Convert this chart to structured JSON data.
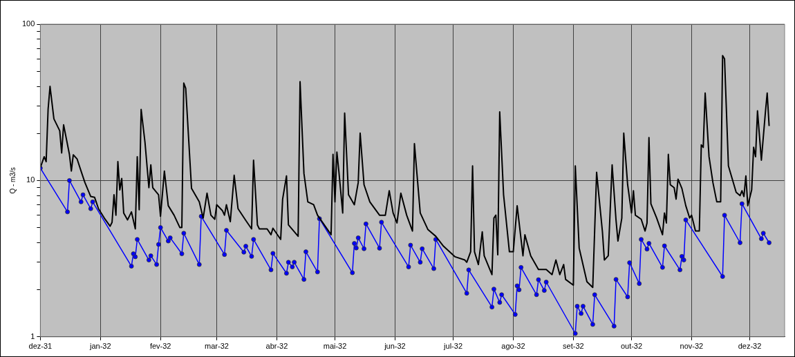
{
  "chart_data": {
    "type": "line",
    "ylabel": "Q - m3/s",
    "log": true,
    "grid": true,
    "xlim": [
      "1931-12-01",
      "1932-12-19"
    ],
    "xticks": [
      {
        "value": "1931-12-01",
        "label": "dez-31"
      },
      {
        "value": "1932-01-01",
        "label": "jan-32"
      },
      {
        "value": "1932-02-01",
        "label": "fev-32"
      },
      {
        "value": "1932-03-01",
        "label": "mar-32"
      },
      {
        "value": "1932-04-01",
        "label": "abr-32"
      },
      {
        "value": "1932-05-01",
        "label": "mai-32"
      },
      {
        "value": "1932-06-01",
        "label": "jun-32"
      },
      {
        "value": "1932-07-01",
        "label": "jul-32"
      },
      {
        "value": "1932-08-01",
        "label": "ago-32"
      },
      {
        "value": "1932-09-01",
        "label": "set-32"
      },
      {
        "value": "1932-10-01",
        "label": "out-32"
      },
      {
        "value": "1932-11-01",
        "label": "nov-32"
      },
      {
        "value": "1932-12-01",
        "label": "dez-32"
      }
    ],
    "ylim": [
      1,
      100
    ],
    "yticks": [
      1,
      {
        "value": 2,
        "label": null
      },
      {
        "value": 3,
        "label": null
      },
      {
        "value": 4,
        "label": null
      },
      {
        "value": 5,
        "label": null
      },
      {
        "value": 6,
        "label": null
      },
      {
        "value": 7,
        "label": null
      },
      {
        "value": 8,
        "label": null
      },
      {
        "value": 9,
        "label": null
      },
      10,
      {
        "value": 20,
        "label": null
      },
      {
        "value": 30,
        "label": null
      },
      {
        "value": 40,
        "label": null
      },
      {
        "value": 50,
        "label": null
      },
      {
        "value": 60,
        "label": null
      },
      {
        "value": 70,
        "label": null
      },
      {
        "value": 80,
        "label": null
      },
      {
        "value": 90,
        "label": null
      },
      100
    ],
    "series": [
      {
        "color": "#000000",
        "marker": "none",
        "x": [
          "1931-12-01",
          "1931-12-03",
          "1931-12-04",
          "1931-12-05",
          "1931-12-06",
          "1931-12-08",
          "1931-12-11",
          "1931-12-12",
          "1931-12-13",
          "1931-12-16",
          "1931-12-17",
          "1931-12-18",
          "1931-12-20",
          "1931-12-22",
          "1931-12-24",
          "1931-12-27",
          "1931-12-29",
          "1931-12-31",
          "1932-01-03",
          "1932-01-06",
          "1932-01-07",
          "1932-01-08",
          "1932-01-09",
          "1932-01-10",
          "1932-01-11",
          "1932-01-12",
          "1932-01-13",
          "1932-01-15",
          "1932-01-17",
          "1932-01-19",
          "1932-01-20",
          "1932-01-21",
          "1932-01-22",
          "1932-01-24",
          "1932-01-26",
          "1932-01-27",
          "1932-01-28",
          "1932-01-31",
          "1932-02-01",
          "1932-02-03",
          "1932-02-05",
          "1932-02-08",
          "1932-02-11",
          "1932-02-12",
          "1932-02-13",
          "1932-02-14",
          "1932-02-17",
          "1932-02-21",
          "1932-02-23",
          "1932-02-25",
          "1932-02-27",
          "1932-02-29",
          "1932-03-01",
          "1932-03-04",
          "1932-03-05",
          "1932-03-06",
          "1932-03-08",
          "1932-03-10",
          "1932-03-12",
          "1932-03-16",
          "1932-03-19",
          "1932-03-20",
          "1932-03-22",
          "1932-03-23",
          "1932-03-27",
          "1932-03-29",
          "1932-03-30",
          "1932-04-03",
          "1932-04-04",
          "1932-04-06",
          "1932-04-07",
          "1932-04-12",
          "1932-04-13",
          "1932-04-15",
          "1932-04-17",
          "1932-04-20",
          "1932-04-22",
          "1932-04-29",
          "1932-04-30",
          "1932-05-01",
          "1932-05-02",
          "1932-05-03",
          "1932-05-05",
          "1932-05-06",
          "1932-05-08",
          "1932-05-11",
          "1932-05-13",
          "1932-05-14",
          "1932-05-16",
          "1932-05-19",
          "1932-05-24",
          "1932-05-27",
          "1932-05-29",
          "1932-05-31",
          "1932-06-02",
          "1932-06-04",
          "1932-06-07",
          "1932-06-10",
          "1932-06-11",
          "1932-06-14",
          "1932-06-18",
          "1932-06-22",
          "1932-06-26",
          "1932-07-02",
          "1932-07-07",
          "1932-07-08",
          "1932-07-10",
          "1932-07-11",
          "1932-07-12",
          "1932-07-14",
          "1932-07-16",
          "1932-07-17",
          "1932-07-21",
          "1932-07-22",
          "1932-07-23",
          "1932-07-24",
          "1932-07-25",
          "1932-07-27",
          "1932-07-30",
          "1932-08-01",
          "1932-08-03",
          "1932-08-06",
          "1932-08-07",
          "1932-08-10",
          "1932-08-14",
          "1932-08-18",
          "1932-08-21",
          "1932-08-23",
          "1932-08-25",
          "1932-08-27",
          "1932-08-28",
          "1932-09-01",
          "1932-09-02",
          "1932-09-04",
          "1932-09-08",
          "1932-09-11",
          "1932-09-13",
          "1932-09-14",
          "1932-09-16",
          "1932-09-17",
          "1932-09-19",
          "1932-09-21",
          "1932-09-23",
          "1932-09-24",
          "1932-09-26",
          "1932-09-27",
          "1932-09-29",
          "1932-10-01",
          "1932-10-02",
          "1932-10-03",
          "1932-10-06",
          "1932-10-08",
          "1932-10-09",
          "1932-10-10",
          "1932-10-11",
          "1932-10-14",
          "1932-10-17",
          "1932-10-18",
          "1932-10-19",
          "1932-10-20",
          "1932-10-21",
          "1932-10-23",
          "1932-10-24",
          "1932-10-25",
          "1932-10-27",
          "1932-10-29",
          "1932-10-31",
          "1932-11-01",
          "1932-11-03",
          "1932-11-05",
          "1932-11-06",
          "1932-11-07",
          "1932-11-08",
          "1932-11-10",
          "1932-11-12",
          "1932-11-14",
          "1932-11-16",
          "1932-11-17",
          "1932-11-18",
          "1932-11-20",
          "1932-11-24",
          "1932-11-26",
          "1932-11-27",
          "1932-11-28",
          "1932-11-29",
          "1932-11-30",
          "1932-12-02",
          "1932-12-03",
          "1932-12-04",
          "1932-12-05",
          "1932-12-07",
          "1932-12-09",
          "1932-12-10",
          "1932-12-11"
        ],
        "values": [
          12.1,
          14.2,
          13.2,
          28.5,
          40,
          24.8,
          20.8,
          15,
          22.7,
          14.7,
          11.5,
          14.6,
          13.7,
          11.5,
          9.7,
          7.9,
          7.8,
          6.6,
          5.75,
          5.1,
          5.4,
          8.1,
          6.0,
          13.2,
          8.7,
          10.3,
          6.2,
          5.6,
          6.3,
          4.9,
          14.2,
          6.5,
          28.5,
          17.5,
          9.0,
          12.6,
          9.0,
          8.1,
          5.9,
          11.5,
          6.9,
          6.0,
          5.0,
          5.0,
          42,
          38.9,
          8.9,
          7.3,
          5.75,
          8.3,
          6.0,
          5.65,
          7.0,
          6.4,
          6.0,
          7.0,
          5.45,
          10.8,
          6.6,
          5.55,
          4.9,
          13.5,
          5.2,
          4.9,
          4.9,
          4.5,
          4.95,
          4.2,
          7.6,
          10.7,
          5.2,
          4.4,
          42.9,
          11.1,
          7.3,
          7.0,
          6.0,
          4.5,
          14.7,
          7.3,
          15.2,
          11.5,
          6.2,
          27,
          8.1,
          7.0,
          9.7,
          20.1,
          9.4,
          7.3,
          6.0,
          6.0,
          8.6,
          6.2,
          5.35,
          8.3,
          6.0,
          4.75,
          17.2,
          6.2,
          4.85,
          4.4,
          3.8,
          3.25,
          3.1,
          3.0,
          3.5,
          12.4,
          3.5,
          2.9,
          4.7,
          3.3,
          2.5,
          5.75,
          6.0,
          3.35,
          27.5,
          8.1,
          3.5,
          3.5,
          6.9,
          3.3,
          4.5,
          3.3,
          2.7,
          2.7,
          2.5,
          3.1,
          2.5,
          2.9,
          2.33,
          2.14,
          12.4,
          3.7,
          2.25,
          2.07,
          11.3,
          8.4,
          4.7,
          3.1,
          3.3,
          12.6,
          5.6,
          4.1,
          5.75,
          20.1,
          9.4,
          6.2,
          8.6,
          6.0,
          5.65,
          4.75,
          5.35,
          18.8,
          7.1,
          5.75,
          4.5,
          6.2,
          5.35,
          14.7,
          9.4,
          9.0,
          7.6,
          10.2,
          8.9,
          6.9,
          5.75,
          6.0,
          4.75,
          4.75,
          16.9,
          16.3,
          36.3,
          14.2,
          9.7,
          7.3,
          7.3,
          63,
          60,
          12.4,
          8.4,
          8.0,
          8.6,
          7.9,
          10.7,
          6.9,
          8.7,
          16.3,
          14.2,
          27.9,
          13.5,
          26.6,
          36.3,
          22.3
        ]
      },
      {
        "color": "#0000ff",
        "marker": "circle",
        "x": [
          "1931-12-01",
          "1931-12-15",
          "1931-12-16",
          "1931-12-22",
          "1931-12-23",
          "1931-12-27",
          "1931-12-28",
          "1932-01-17",
          "1932-01-18",
          "1932-01-19",
          "1932-01-20",
          "1932-01-26",
          "1932-01-27",
          "1932-01-30",
          "1932-01-31",
          "1932-02-01",
          "1932-02-05",
          "1932-02-06",
          "1932-02-12",
          "1932-02-13",
          "1932-02-21",
          "1932-02-22",
          "1932-03-05",
          "1932-03-06",
          "1932-03-15",
          "1932-03-16",
          "1932-03-19",
          "1932-03-20",
          "1932-03-29",
          "1932-03-30",
          "1932-04-06",
          "1932-04-07",
          "1932-04-09",
          "1932-04-10",
          "1932-04-15",
          "1932-04-16",
          "1932-04-22",
          "1932-04-23",
          "1932-05-10",
          "1932-05-11",
          "1932-05-12",
          "1932-05-13",
          "1932-05-16",
          "1932-05-17",
          "1932-05-24",
          "1932-05-25",
          "1932-06-08",
          "1932-06-09",
          "1932-06-14",
          "1932-06-15",
          "1932-06-21",
          "1932-06-22",
          "1932-07-08",
          "1932-07-09",
          "1932-07-21",
          "1932-07-22",
          "1932-07-25",
          "1932-07-26",
          "1932-08-02",
          "1932-08-03",
          "1932-08-04",
          "1932-08-05",
          "1932-08-13",
          "1932-08-14",
          "1932-08-17",
          "1932-08-18",
          "1932-09-02",
          "1932-09-03",
          "1932-09-05",
          "1932-09-06",
          "1932-09-11",
          "1932-09-12",
          "1932-09-22",
          "1932-09-23",
          "1932-09-29",
          "1932-09-30",
          "1932-10-05",
          "1932-10-06",
          "1932-10-09",
          "1932-10-10",
          "1932-10-17",
          "1932-10-18",
          "1932-10-26",
          "1932-10-27",
          "1932-10-28",
          "1932-10-29",
          "1932-11-17",
          "1932-11-18",
          "1932-11-26",
          "1932-11-27",
          "1932-12-07",
          "1932-12-08",
          "1932-12-11"
        ],
        "values": [
          12.0,
          6.3,
          10.0,
          7.3,
          8.1,
          6.6,
          7.3,
          2.83,
          3.4,
          3.25,
          4.2,
          3.1,
          3.3,
          2.9,
          3.9,
          5.0,
          4.1,
          4.3,
          3.4,
          4.6,
          2.9,
          5.9,
          3.36,
          4.8,
          3.48,
          3.8,
          3.27,
          4.2,
          2.68,
          3.42,
          2.55,
          3.0,
          2.8,
          3.0,
          2.33,
          3.5,
          2.6,
          5.7,
          2.57,
          3.96,
          3.7,
          4.3,
          3.66,
          5.28,
          3.69,
          5.41,
          2.8,
          3.86,
          3.0,
          3.66,
          2.73,
          4.2,
          1.9,
          2.68,
          1.55,
          2.02,
          1.66,
          1.86,
          1.39,
          2.12,
          2.0,
          2.78,
          1.86,
          2.32,
          1.98,
          2.24,
          1.05,
          1.57,
          1.41,
          1.57,
          1.2,
          1.86,
          1.17,
          2.33,
          1.8,
          2.98,
          2.19,
          4.2,
          3.64,
          3.96,
          2.78,
          3.82,
          2.68,
          3.27,
          3.1,
          5.6,
          2.43,
          6.0,
          4.0,
          7.1,
          4.24,
          4.6,
          4.0
        ]
      }
    ]
  }
}
